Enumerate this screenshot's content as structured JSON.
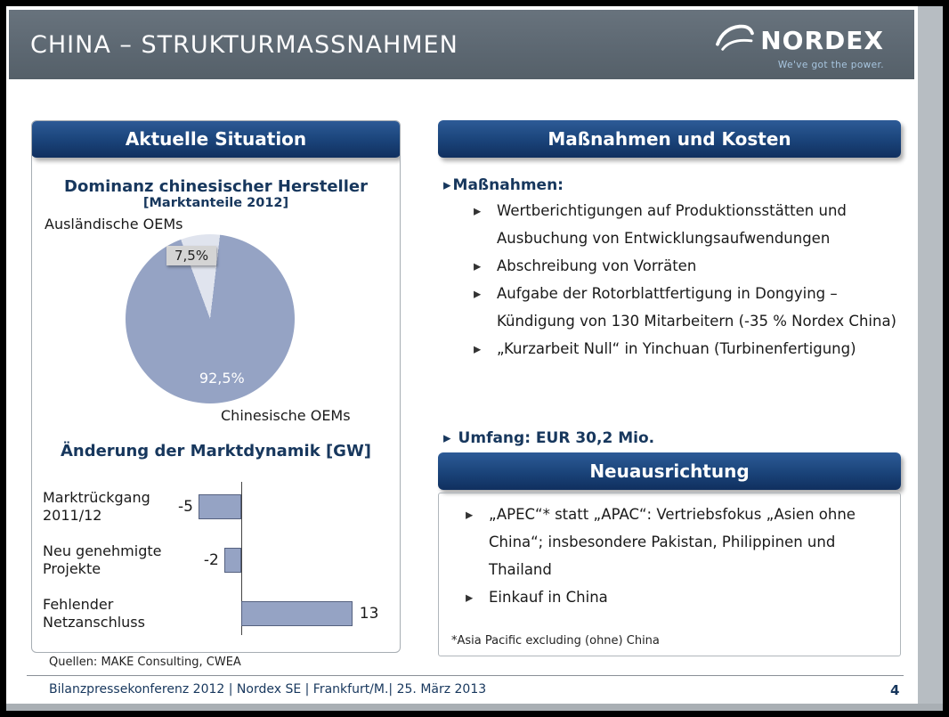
{
  "header": {
    "title": "CHINA – STRUKTURMASSNAHMEN",
    "logo_text": "NORDEX",
    "logo_tagline": "We've got the power."
  },
  "icons": {
    "arrow_bullet": "▸"
  },
  "colors": {
    "accent_navy": "#17375d",
    "header_bar_navy": "#1a4379",
    "band_gray": "#5d6872",
    "pie_small": "#e0e4ee",
    "pie_big": "#95a3c4",
    "bar_fill": "#95a3c4"
  },
  "left_panel": {
    "title": "Aktuelle Situation"
  },
  "chart_data": [
    {
      "type": "pie",
      "title": "Dominanz chinesischer Hersteller",
      "subtitle": "[Marktanteile 2012]",
      "labels": [
        "Ausländische OEMs",
        "Chinesische OEMs"
      ],
      "values": [
        7.5,
        92.5
      ],
      "data_labels": [
        "7,5%",
        "92,5%"
      ],
      "colors": [
        "#e0e4ee",
        "#95a3c4"
      ],
      "legend": "none"
    },
    {
      "type": "bar",
      "orientation": "horizontal",
      "title": "Änderung der Marktdynamik [GW]",
      "categories": [
        "Marktrückgang 2011/12",
        "Neu genehmigte Projekte",
        "Fehlender Netzanschluss"
      ],
      "values": [
        -5,
        -2,
        13
      ],
      "xlim": [
        -8,
        15
      ],
      "bar_color": "#95a3c4",
      "grid": false
    }
  ],
  "massnahmen_panel": {
    "title": "Maßnahmen und Kosten",
    "heading": "Maßnahmen:",
    "items": [
      "Wertberichtigungen auf Produktionsstätten und Ausbuchung von Entwicklungsaufwendungen",
      "Abschreibung von Vorräten",
      "Aufgabe der Rotorblattfertigung in Dongying – Kündigung von 130 Mitarbeitern (-35 % Nordex China)",
      "„Kurzarbeit Null“ in Yinchuan (Turbinenfertigung)"
    ],
    "summary": "Umfang: EUR 30,2 Mio."
  },
  "neuausrichtung_panel": {
    "title": "Neuausrichtung",
    "items": [
      "„APEC“* statt „APAC“: Vertriebsfokus „Asien ohne China“; insbesondere Pakistan, Philippinen und Thailand",
      "Einkauf in China"
    ],
    "footnote": "*Asia Pacific excluding (ohne) China"
  },
  "sources": "Quellen: MAKE Consulting, CWEA",
  "footer": {
    "text": "Bilanzpressekonferenz 2012 | Nordex SE | Frankfurt/M.| 25. März 2013",
    "page_number": "4"
  }
}
